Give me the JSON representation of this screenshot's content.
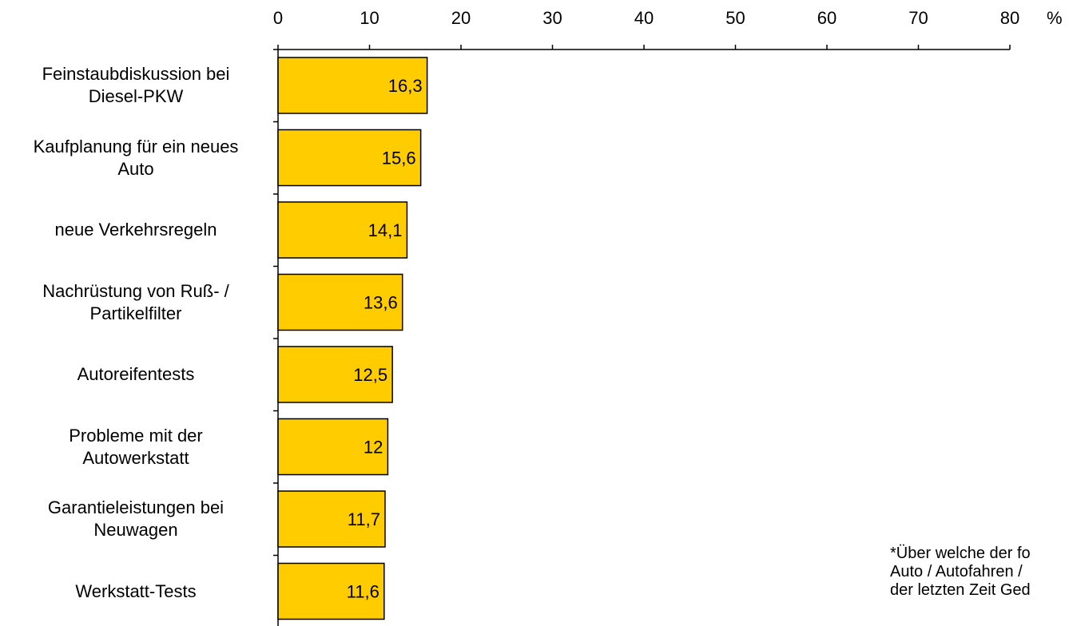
{
  "chart_data": {
    "type": "bar",
    "orientation": "horizontal",
    "unit": "%",
    "xlim": [
      0,
      80
    ],
    "x_ticks": [
      "0",
      "10",
      "20",
      "30",
      "40",
      "50",
      "60",
      "70",
      "80"
    ],
    "axis_position": "top",
    "grid": false,
    "bar_color": "#FFCC00",
    "categories": [
      [
        "Feinstaubdiskussion bei",
        "Diesel-PKW"
      ],
      [
        "Kaufplanung für ein neues",
        "Auto"
      ],
      [
        "neue Verkehrsregeln"
      ],
      [
        "Nachrüstung von Ruß- /",
        "Partikelfilter"
      ],
      [
        "Autoreifentests"
      ],
      [
        "Probleme mit der",
        "Autowerkstatt"
      ],
      [
        "Garantieleistungen bei",
        "Neuwagen"
      ],
      [
        "Werkstatt-Tests"
      ]
    ],
    "values": [
      16.3,
      15.6,
      14.1,
      13.6,
      12.5,
      12,
      11.7,
      11.6
    ],
    "value_labels": [
      "16,3",
      "15,6",
      "14,1",
      "13,6",
      "12,5",
      "12",
      "11,7",
      "11,6"
    ],
    "footnote": "*Über welche der fo\nAuto / Autofahren / \nder letzten Zeit Ged"
  }
}
